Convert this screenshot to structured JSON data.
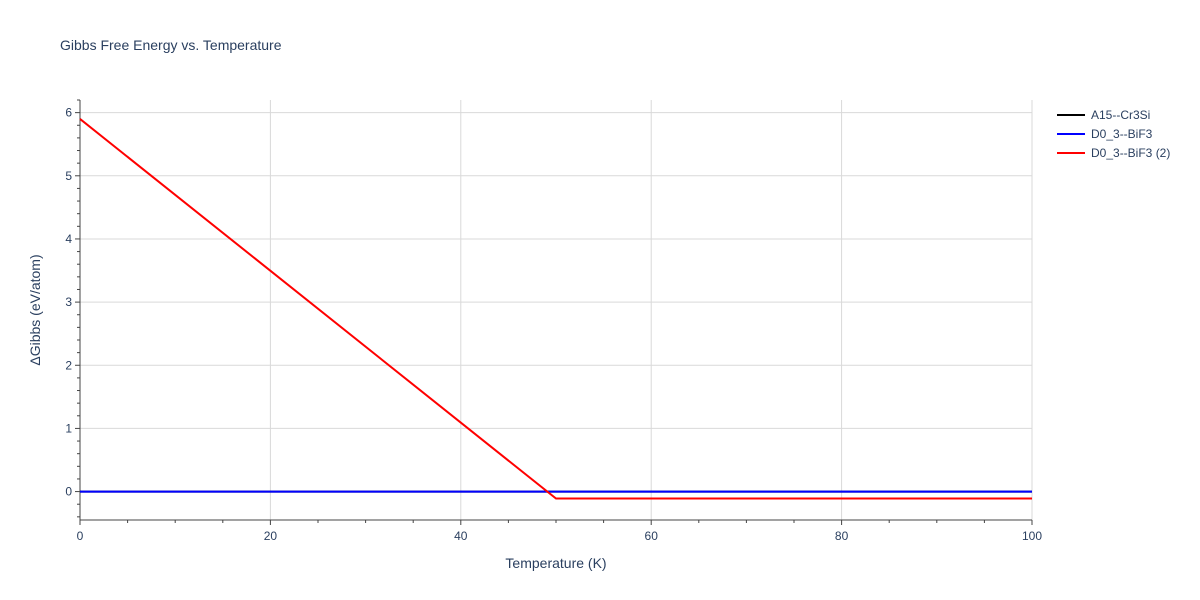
{
  "chart_data": {
    "type": "line",
    "title": "Gibbs Free Energy vs. Temperature",
    "xlabel": "Temperature (K)",
    "ylabel": "ΔGibbs (eV/atom)",
    "xlim": [
      0,
      100
    ],
    "ylim": [
      -0.45,
      6.2
    ],
    "x_ticks": [
      0,
      20,
      40,
      60,
      80,
      100
    ],
    "x_tick_labels": [
      "0",
      "20",
      "40",
      "60",
      "80",
      "100"
    ],
    "y_ticks": [
      0,
      1,
      2,
      3,
      4,
      5,
      6
    ],
    "y_tick_labels": [
      "0",
      "1",
      "2",
      "3",
      "4",
      "5",
      "6"
    ],
    "grid": true,
    "legend_position": "top-right",
    "series": [
      {
        "name": "A15--Cr3Si",
        "color": "#000000",
        "x": [
          0,
          100
        ],
        "y": [
          0,
          0
        ]
      },
      {
        "name": "D0_3--BiF3",
        "color": "#0000ff",
        "x": [
          0,
          100
        ],
        "y": [
          0,
          0
        ]
      },
      {
        "name": "D0_3--BiF3 (2)",
        "color": "#ff0000",
        "x": [
          0,
          50,
          100
        ],
        "y": [
          5.9,
          -0.11,
          -0.11
        ]
      }
    ]
  }
}
